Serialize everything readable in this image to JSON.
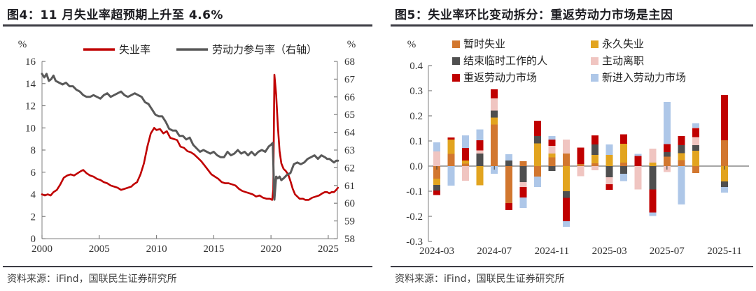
{
  "page": {
    "background": "#ffffff"
  },
  "panels": [
    {
      "id": "fig4",
      "title": "图4：11 月失业率超预期上升至 4.6%",
      "source": "资料来源：iFind，国联民生证券研究所"
    },
    {
      "id": "fig5",
      "title": "图5：失业率环比变动拆分：重返劳动力市场是主因",
      "source": "资料来源：iFind，国联民生证券研究所"
    }
  ],
  "colors": {
    "axis": "#7f7f7f",
    "tick_text": "#333333",
    "title_text": "#1d1d22",
    "rule": "#3c3c44",
    "unemployment_red": "#c00000",
    "participation_gray": "#595959"
  },
  "chart_data": [
    {
      "type": "line",
      "title": "图4：11 月失业率超预期上升至 4.6%",
      "left_axis": {
        "unit": "%",
        "min": 0,
        "max": 16,
        "tick_step": 2,
        "ticks": [
          0,
          2,
          4,
          6,
          8,
          10,
          12,
          14,
          16
        ]
      },
      "right_axis": {
        "unit": "%",
        "min": 58,
        "max": 68,
        "tick_step": 1,
        "ticks": [
          58,
          59,
          60,
          61,
          62,
          63,
          64,
          65,
          66,
          67,
          68
        ]
      },
      "x_axis": {
        "min": 2000,
        "max": 2025.8,
        "ticks": [
          2000,
          2005,
          2010,
          2015,
          2020,
          2025
        ]
      },
      "grid": false,
      "legend_position": "top",
      "series": [
        {
          "key": "unemployment-rate",
          "name": "失业率",
          "axis": "left",
          "color": "#c00000",
          "points": [
            [
              2000.0,
              4.0
            ],
            [
              2000.25,
              3.9
            ],
            [
              2000.5,
              4.0
            ],
            [
              2000.75,
              3.9
            ],
            [
              2001.0,
              4.2
            ],
            [
              2001.3,
              4.4
            ],
            [
              2001.6,
              4.9
            ],
            [
              2001.9,
              5.5
            ],
            [
              2002.2,
              5.7
            ],
            [
              2002.5,
              5.8
            ],
            [
              2002.8,
              5.7
            ],
            [
              2003.1,
              5.9
            ],
            [
              2003.4,
              6.1
            ],
            [
              2003.6,
              6.2
            ],
            [
              2003.9,
              5.9
            ],
            [
              2004.2,
              5.7
            ],
            [
              2004.5,
              5.6
            ],
            [
              2004.8,
              5.4
            ],
            [
              2005.1,
              5.3
            ],
            [
              2005.4,
              5.1
            ],
            [
              2005.7,
              5.0
            ],
            [
              2006.0,
              4.8
            ],
            [
              2006.3,
              4.7
            ],
            [
              2006.6,
              4.6
            ],
            [
              2006.9,
              4.4
            ],
            [
              2007.2,
              4.5
            ],
            [
              2007.5,
              4.6
            ],
            [
              2007.8,
              4.7
            ],
            [
              2008.0,
              4.9
            ],
            [
              2008.3,
              5.1
            ],
            [
              2008.6,
              5.8
            ],
            [
              2008.9,
              6.8
            ],
            [
              2009.2,
              8.3
            ],
            [
              2009.5,
              9.5
            ],
            [
              2009.8,
              10.0
            ],
            [
              2010.0,
              9.8
            ],
            [
              2010.3,
              9.9
            ],
            [
              2010.6,
              9.5
            ],
            [
              2010.9,
              9.7
            ],
            [
              2011.2,
              9.1
            ],
            [
              2011.5,
              9.0
            ],
            [
              2011.8,
              8.9
            ],
            [
              2012.1,
              8.3
            ],
            [
              2012.4,
              8.2
            ],
            [
              2012.7,
              7.9
            ],
            [
              2013.0,
              7.8
            ],
            [
              2013.3,
              7.6
            ],
            [
              2013.6,
              7.3
            ],
            [
              2013.9,
              7.0
            ],
            [
              2014.2,
              6.6
            ],
            [
              2014.5,
              6.2
            ],
            [
              2014.8,
              5.8
            ],
            [
              2015.1,
              5.6
            ],
            [
              2015.4,
              5.4
            ],
            [
              2015.7,
              5.1
            ],
            [
              2016.0,
              5.0
            ],
            [
              2016.3,
              5.0
            ],
            [
              2016.6,
              4.9
            ],
            [
              2016.9,
              4.8
            ],
            [
              2017.2,
              4.5
            ],
            [
              2017.5,
              4.3
            ],
            [
              2017.8,
              4.2
            ],
            [
              2018.1,
              4.1
            ],
            [
              2018.4,
              4.0
            ],
            [
              2018.7,
              3.8
            ],
            [
              2019.0,
              3.9
            ],
            [
              2019.3,
              3.7
            ],
            [
              2019.6,
              3.6
            ],
            [
              2019.9,
              3.6
            ],
            [
              2020.1,
              3.5
            ],
            [
              2020.2,
              4.4
            ],
            [
              2020.3,
              14.8
            ],
            [
              2020.45,
              13.0
            ],
            [
              2020.6,
              10.2
            ],
            [
              2020.75,
              7.9
            ],
            [
              2020.9,
              6.8
            ],
            [
              2021.1,
              6.3
            ],
            [
              2021.3,
              6.1
            ],
            [
              2021.5,
              5.8
            ],
            [
              2021.7,
              5.2
            ],
            [
              2021.9,
              4.5
            ],
            [
              2022.1,
              4.0
            ],
            [
              2022.3,
              3.8
            ],
            [
              2022.5,
              3.6
            ],
            [
              2022.8,
              3.6
            ],
            [
              2023.0,
              3.5
            ],
            [
              2023.3,
              3.5
            ],
            [
              2023.6,
              3.7
            ],
            [
              2023.9,
              3.8
            ],
            [
              2024.2,
              3.9
            ],
            [
              2024.5,
              4.1
            ],
            [
              2024.7,
              4.2
            ],
            [
              2024.9,
              4.2
            ],
            [
              2025.1,
              4.1
            ],
            [
              2025.3,
              4.2
            ],
            [
              2025.5,
              4.2
            ],
            [
              2025.7,
              4.4
            ],
            [
              2025.85,
              4.6
            ]
          ]
        },
        {
          "key": "labor-force-participation",
          "name": "劳动力参与率（右轴）",
          "axis": "right",
          "color": "#595959",
          "points": [
            [
              2000.0,
              67.3
            ],
            [
              2000.2,
              67.1
            ],
            [
              2000.4,
              67.3
            ],
            [
              2000.6,
              66.9
            ],
            [
              2000.8,
              67.0
            ],
            [
              2001.0,
              67.2
            ],
            [
              2001.2,
              66.9
            ],
            [
              2001.5,
              66.8
            ],
            [
              2001.8,
              66.7
            ],
            [
              2002.1,
              66.8
            ],
            [
              2002.4,
              66.6
            ],
            [
              2002.7,
              66.6
            ],
            [
              2003.0,
              66.4
            ],
            [
              2003.3,
              66.3
            ],
            [
              2003.6,
              66.1
            ],
            [
              2003.9,
              66.0
            ],
            [
              2004.2,
              66.0
            ],
            [
              2004.5,
              66.1
            ],
            [
              2004.8,
              66.0
            ],
            [
              2005.1,
              65.9
            ],
            [
              2005.4,
              66.1
            ],
            [
              2005.7,
              66.2
            ],
            [
              2006.0,
              66.0
            ],
            [
              2006.3,
              66.1
            ],
            [
              2006.6,
              66.2
            ],
            [
              2006.9,
              66.3
            ],
            [
              2007.2,
              66.1
            ],
            [
              2007.5,
              66.0
            ],
            [
              2007.8,
              66.1
            ],
            [
              2008.1,
              66.2
            ],
            [
              2008.4,
              66.1
            ],
            [
              2008.7,
              66.0
            ],
            [
              2009.0,
              65.7
            ],
            [
              2009.3,
              65.6
            ],
            [
              2009.6,
              65.3
            ],
            [
              2009.9,
              65.0
            ],
            [
              2010.2,
              64.9
            ],
            [
              2010.5,
              64.9
            ],
            [
              2010.8,
              64.6
            ],
            [
              2011.1,
              64.2
            ],
            [
              2011.4,
              64.1
            ],
            [
              2011.7,
              64.1
            ],
            [
              2012.0,
              63.8
            ],
            [
              2012.3,
              63.8
            ],
            [
              2012.6,
              63.6
            ],
            [
              2012.9,
              63.7
            ],
            [
              2013.2,
              63.3
            ],
            [
              2013.5,
              63.1
            ],
            [
              2013.8,
              62.9
            ],
            [
              2014.1,
              63.0
            ],
            [
              2014.4,
              62.9
            ],
            [
              2014.7,
              62.8
            ],
            [
              2015.0,
              62.9
            ],
            [
              2015.3,
              62.7
            ],
            [
              2015.6,
              62.6
            ],
            [
              2015.9,
              62.6
            ],
            [
              2016.2,
              62.9
            ],
            [
              2016.5,
              62.7
            ],
            [
              2016.8,
              62.8
            ],
            [
              2017.1,
              63.0
            ],
            [
              2017.4,
              62.8
            ],
            [
              2017.7,
              62.9
            ],
            [
              2018.0,
              62.7
            ],
            [
              2018.3,
              62.9
            ],
            [
              2018.6,
              62.7
            ],
            [
              2018.9,
              62.9
            ],
            [
              2019.2,
              63.0
            ],
            [
              2019.5,
              62.9
            ],
            [
              2019.8,
              63.2
            ],
            [
              2020.0,
              63.3
            ],
            [
              2020.15,
              63.4
            ],
            [
              2020.3,
              60.2
            ],
            [
              2020.45,
              61.5
            ],
            [
              2020.6,
              61.4
            ],
            [
              2020.75,
              61.5
            ],
            [
              2020.9,
              61.3
            ],
            [
              2021.1,
              61.4
            ],
            [
              2021.4,
              61.6
            ],
            [
              2021.7,
              61.7
            ],
            [
              2022.0,
              62.2
            ],
            [
              2022.3,
              62.3
            ],
            [
              2022.6,
              62.2
            ],
            [
              2022.9,
              62.3
            ],
            [
              2023.2,
              62.5
            ],
            [
              2023.5,
              62.6
            ],
            [
              2023.8,
              62.7
            ],
            [
              2024.1,
              62.5
            ],
            [
              2024.4,
              62.7
            ],
            [
              2024.7,
              62.6
            ],
            [
              2024.9,
              62.5
            ],
            [
              2025.1,
              62.5
            ],
            [
              2025.3,
              62.4
            ],
            [
              2025.5,
              62.3
            ],
            [
              2025.7,
              62.4
            ],
            [
              2025.85,
              62.4
            ]
          ]
        }
      ]
    },
    {
      "type": "bar",
      "stacked": true,
      "title": "图5：失业率环比变动拆分：重返劳动力市场是主因",
      "y_axis": {
        "unit": "%",
        "min": -0.3,
        "max": 0.4,
        "tick_step": 0.1,
        "ticks": [
          0.4,
          0.3,
          0.2,
          0.1,
          0.0,
          -0.1,
          -0.2,
          -0.3
        ]
      },
      "categories": [
        "2024-03",
        "2024-04",
        "2024-05",
        "2024-06",
        "2024-07",
        "2024-08",
        "2024-09",
        "2024-10",
        "2024-11",
        "2024-12",
        "2025-01",
        "2025-02",
        "2025-03",
        "2025-04",
        "2025-05",
        "2025-06",
        "2025-07",
        "2025-08",
        "2025-09",
        "2025-10",
        "2025-11"
      ],
      "x_tick_labels": [
        "2024-03",
        "2024-07",
        "2024-11",
        "2025-03",
        "2025-07",
        "2025-11"
      ],
      "x_tick_indices": [
        0,
        4,
        8,
        12,
        16,
        20
      ],
      "note": "2025-10 has no bar (missing data)",
      "grid": false,
      "legend_position": "top",
      "series": [
        {
          "key": "temporary-layoffs",
          "name": "暂时失业",
          "color": "#d2772f",
          "values": [
            -0.05,
            0.049,
            0.01,
            0,
            0.165,
            -0.147,
            0.019,
            -0.042,
            0.035,
            0.05,
            0.008,
            0.011,
            0,
            0.014,
            0,
            0,
            0.037,
            0.023,
            -0.028,
            null,
            0.103
          ]
        },
        {
          "key": "permanent-job-losers",
          "name": "永久失业",
          "color": "#e2a41f",
          "values": [
            -0.025,
            0.056,
            0.012,
            -0.076,
            0.028,
            0,
            0,
            0.09,
            0.015,
            -0.1,
            0,
            0.033,
            0.044,
            0.075,
            0,
            0.014,
            0,
            0.028,
            0.061,
            null,
            -0.061
          ]
        },
        {
          "key": "completed-temporary-jobs",
          "name": "结束临时工作的人",
          "color": "#4f4f4f",
          "values": [
            -0.022,
            0,
            0,
            0.05,
            0.028,
            0.022,
            -0.064,
            0.03,
            -0.02,
            -0.027,
            0,
            0.042,
            -0.044,
            -0.031,
            0,
            -0.093,
            0.019,
            0.032,
            0.022,
            null,
            -0.022
          ]
        },
        {
          "key": "job-leavers",
          "name": "主动离职",
          "color": "#f0c5c1",
          "values": [
            0.058,
            0,
            -0.058,
            0.013,
            0.048,
            0,
            -0.019,
            0,
            0.03,
            0.055,
            -0.04,
            -0.016,
            -0.028,
            0,
            -0.093,
            0.056,
            -0.023,
            0,
            0.033,
            null,
            0
          ]
        },
        {
          "key": "reentrants",
          "name": "重返劳动力市场",
          "color": "#c00000",
          "values": [
            -0.018,
            0.009,
            0.05,
            0.04,
            0.036,
            -0.028,
            -0.042,
            0.06,
            0.025,
            -0.092,
            0.065,
            0.036,
            -0.023,
            0.037,
            0.04,
            -0.092,
            0.032,
            0.037,
            0.036,
            null,
            0.18
          ]
        },
        {
          "key": "new-entrants",
          "name": "新进入劳动力市场",
          "color": "#aec7e8",
          "values": [
            0.037,
            -0.078,
            0.05,
            0.043,
            -0.03,
            0.025,
            -0.042,
            -0.042,
            0.015,
            -0.023,
            0,
            0,
            0.042,
            -0.028,
            0.008,
            -0.014,
            0.167,
            -0.153,
            0.019,
            null,
            -0.022
          ]
        }
      ]
    }
  ]
}
